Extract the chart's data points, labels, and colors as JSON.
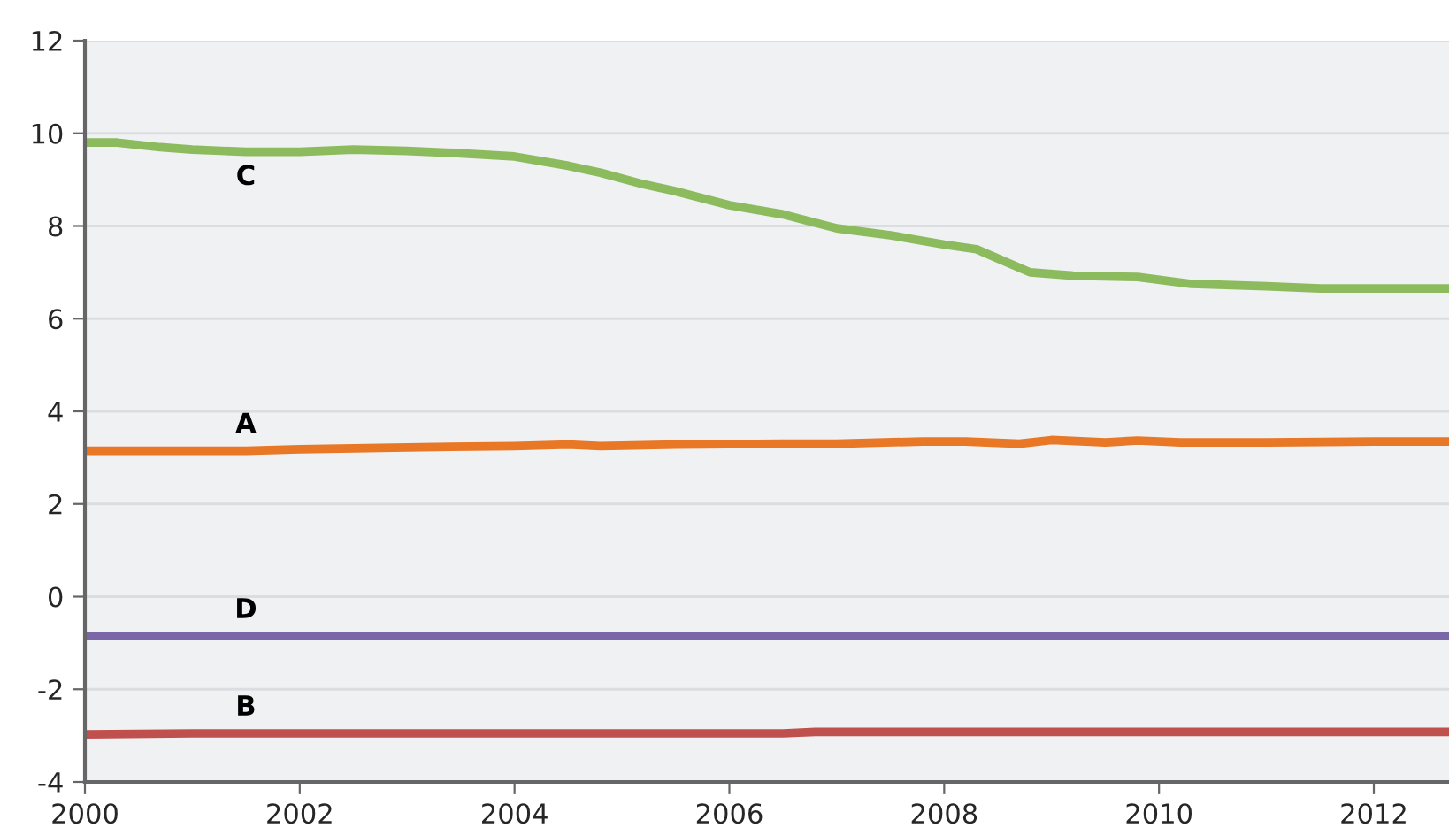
{
  "chart_data": {
    "type": "line",
    "xlim": [
      2000,
      2012.7
    ],
    "ylim": [
      -4,
      12
    ],
    "xticks": [
      2000,
      2002,
      2004,
      2006,
      2008,
      2010,
      2012
    ],
    "yticks": [
      -4,
      -2,
      0,
      2,
      4,
      6,
      8,
      10,
      12
    ],
    "grid": "y",
    "legend": false,
    "marker": "none",
    "line_style": "solid",
    "series": [
      {
        "name": "C",
        "color": "#8cbb5e",
        "x": [
          2000,
          2000.3,
          2000.7,
          2001,
          2001.5,
          2002,
          2002.5,
          2003,
          2003.5,
          2004,
          2004.5,
          2004.8,
          2005.2,
          2005.5,
          2006,
          2006.5,
          2007,
          2007.5,
          2008,
          2008.3,
          2008.5,
          2008.8,
          2009.2,
          2009.8,
          2010.3,
          2011,
          2011.5,
          2012,
          2012.7
        ],
        "values": [
          9.8,
          9.8,
          9.7,
          9.65,
          9.6,
          9.6,
          9.65,
          9.62,
          9.57,
          9.5,
          9.3,
          9.15,
          8.9,
          8.75,
          8.45,
          8.25,
          7.95,
          7.8,
          7.6,
          7.5,
          7.3,
          7.0,
          6.93,
          6.9,
          6.75,
          6.7,
          6.65,
          6.65,
          6.65
        ]
      },
      {
        "name": "A",
        "color": "#e87726",
        "x": [
          2000,
          2001,
          2001.5,
          2002,
          2002.5,
          2003,
          2004,
          2004.5,
          2004.8,
          2005.5,
          2006.5,
          2007,
          2007.8,
          2008.2,
          2008.7,
          2009,
          2009.5,
          2009.8,
          2010.2,
          2011,
          2012,
          2012.7
        ],
        "values": [
          3.15,
          3.15,
          3.15,
          3.18,
          3.2,
          3.22,
          3.25,
          3.28,
          3.25,
          3.28,
          3.3,
          3.3,
          3.35,
          3.35,
          3.3,
          3.38,
          3.33,
          3.37,
          3.33,
          3.33,
          3.35,
          3.35
        ]
      },
      {
        "name": "D",
        "color": "#7b67a8",
        "x": [
          2000,
          2012.7
        ],
        "values": [
          -0.85,
          -0.85
        ]
      },
      {
        "name": "B",
        "color": "#c0504d",
        "x": [
          2000,
          2001,
          2006.5,
          2006.8,
          2012.7
        ],
        "values": [
          -2.97,
          -2.95,
          -2.95,
          -2.92,
          -2.92
        ]
      }
    ]
  }
}
